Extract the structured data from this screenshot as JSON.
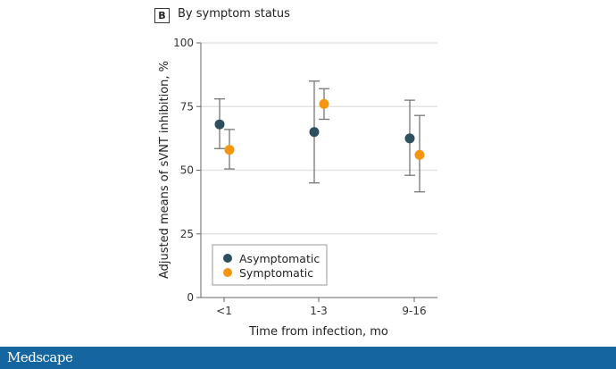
{
  "panel": {
    "tag": "B",
    "title": "By symptom status"
  },
  "footer": {
    "logo": "Medscape"
  },
  "chart_data": {
    "type": "scatter",
    "title": "By symptom status",
    "xlabel": "Time from infection, mo",
    "ylabel": "Adjusted means of sVNT inhibition, %",
    "ylim": [
      0,
      100
    ],
    "yticks": [
      0,
      25,
      50,
      75,
      100
    ],
    "grid": true,
    "categories": [
      "<1",
      "1-3",
      "9-16"
    ],
    "legend_position": "bottom-left",
    "series": [
      {
        "name": "Asymptomatic",
        "color": "#2d4f5f",
        "values": [
          68,
          65,
          62.5
        ],
        "lower": [
          58.5,
          45,
          48
        ],
        "upper": [
          78,
          85,
          77.5
        ]
      },
      {
        "name": "Symptomatic",
        "color": "#f5960f",
        "values": [
          58,
          76,
          56
        ],
        "lower": [
          50.5,
          70,
          41.5
        ],
        "upper": [
          66,
          82,
          71.5
        ]
      }
    ]
  }
}
